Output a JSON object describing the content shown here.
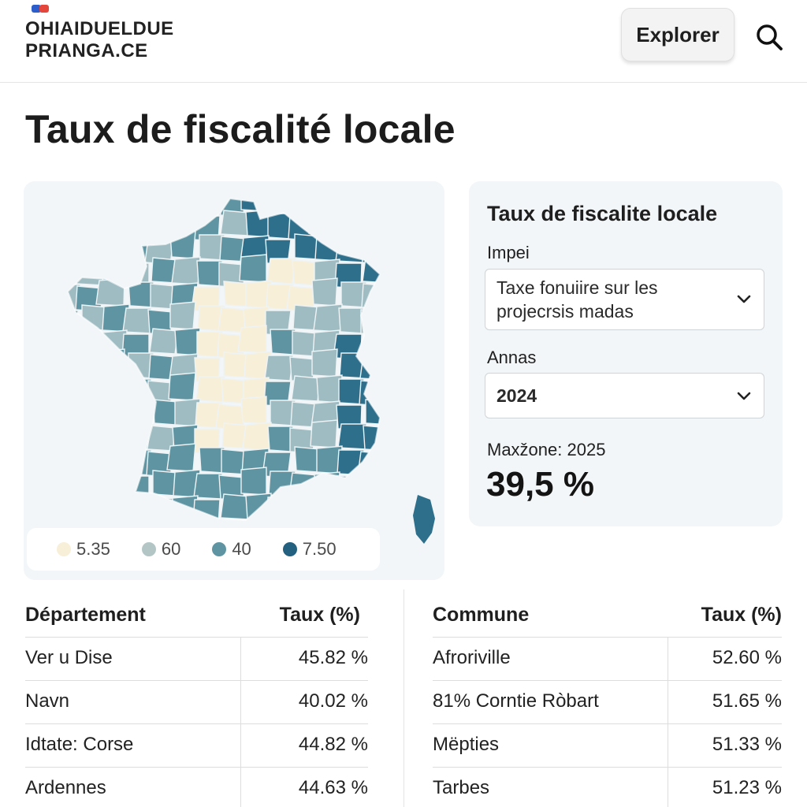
{
  "header": {
    "logo_line1": "OHIAIDUELDUE",
    "logo_line2": "PRIANGA.CE",
    "explore_label": "Explorer",
    "search_icon": "search-icon"
  },
  "page": {
    "title": "Taux de fiscalité locale"
  },
  "map": {
    "legend": [
      {
        "label": "5.35",
        "color": "#f7efd8"
      },
      {
        "label": "60",
        "color": "#b3c6c5"
      },
      {
        "label": "40",
        "color": "#5f95a2"
      },
      {
        "label": "7.50",
        "color": "#24607f"
      }
    ],
    "colors": {
      "light": "#f7efd8",
      "pale": "#d6dfcf",
      "mid": "#9fbcc2",
      "teal": "#5f95a2",
      "deep": "#2e6f8c",
      "darkest": "#1f5f80"
    }
  },
  "panel": {
    "title": "Taux de fiscalite locale",
    "tax_label": "Impei",
    "tax_value_line1": "Taxe fonuiire sur les",
    "tax_value_line2": "projecrsis madas",
    "year_label": "Annas",
    "year_value": "2024",
    "max_label": "Maxžone: 2025",
    "max_value": "39,5 %"
  },
  "departments": {
    "col1_header": "Département",
    "col2_header": "Taux (%)",
    "rows": [
      {
        "name": "Ver u Dise",
        "rate": "45.82 %"
      },
      {
        "name": "Navn",
        "rate": "40.02 %"
      },
      {
        "name": "Idtate: Corse",
        "rate": "44.82 %"
      },
      {
        "name": "Ardennes",
        "rate": "44.63 %"
      }
    ]
  },
  "communes": {
    "col1_header": "Commune",
    "col2_header": "Taux (%)",
    "rows": [
      {
        "name": "Afroriville",
        "rate": "52.60 %"
      },
      {
        "name": "81% Corntie Ròbart",
        "rate": "51.65 %"
      },
      {
        "name": "Mëpties",
        "rate": "51.33 %"
      },
      {
        "name": "Tarbes",
        "rate": "51.23 %"
      }
    ]
  }
}
